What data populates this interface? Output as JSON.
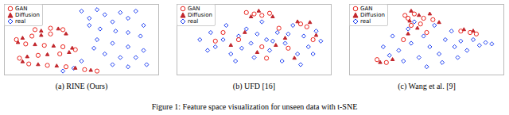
{
  "caption": "Figure 1: Feature space visualization for unseen data with t-SNE",
  "chart_data": [
    {
      "type": "scatter",
      "title": "(a) RINE (Ours)",
      "xlim": [
        0,
        100
      ],
      "ylim": [
        0,
        100
      ],
      "tick_labels": false,
      "legend": "upper left",
      "series": [
        {
          "name": "GAN",
          "color": "#e8251f",
          "marker": "open_circle",
          "values": [
            [
              20,
              64
            ],
            [
              30,
              66
            ],
            [
              38,
              64
            ],
            [
              30,
              58
            ],
            [
              18,
              55
            ],
            [
              8,
              50
            ],
            [
              14,
              44
            ],
            [
              26,
              42
            ],
            [
              38,
              40
            ],
            [
              46,
              36
            ],
            [
              36,
              30
            ],
            [
              22,
              28
            ],
            [
              10,
              24
            ],
            [
              16,
              16
            ],
            [
              28,
              14
            ],
            [
              40,
              12
            ],
            [
              52,
              8
            ],
            [
              60,
              6
            ]
          ]
        },
        {
          "name": "Diffusion",
          "color": "#c1272d",
          "marker": "triangle",
          "values": [
            [
              24,
              62
            ],
            [
              35,
              65
            ],
            [
              40,
              58
            ],
            [
              24,
              56
            ],
            [
              12,
              52
            ],
            [
              9,
              46
            ],
            [
              20,
              43
            ],
            [
              32,
              41
            ],
            [
              44,
              38
            ],
            [
              42,
              32
            ],
            [
              28,
              29
            ],
            [
              15,
              26
            ],
            [
              12,
              19
            ],
            [
              22,
              15
            ],
            [
              34,
              13
            ],
            [
              46,
              10
            ],
            [
              56,
              7
            ]
          ]
        },
        {
          "name": "real",
          "color": "#1a3cf0",
          "marker": "diamond",
          "values": [
            [
              50,
              90
            ],
            [
              55,
              80
            ],
            [
              60,
              92
            ],
            [
              65,
              85
            ],
            [
              70,
              75
            ],
            [
              75,
              88
            ],
            [
              80,
              80
            ],
            [
              85,
              90
            ],
            [
              90,
              70
            ],
            [
              88,
              55
            ],
            [
              80,
              60
            ],
            [
              72,
              62
            ],
            [
              62,
              65
            ],
            [
              55,
              70
            ],
            [
              60,
              50
            ],
            [
              70,
              45
            ],
            [
              80,
              40
            ],
            [
              90,
              35
            ],
            [
              85,
              25
            ],
            [
              75,
              25
            ],
            [
              65,
              30
            ],
            [
              58,
              38
            ],
            [
              70,
              15
            ],
            [
              80,
              12
            ],
            [
              92,
              15
            ],
            [
              50,
              20
            ],
            [
              45,
              10
            ],
            [
              38,
              6
            ]
          ]
        }
      ]
    },
    {
      "type": "scatter",
      "title": "(b) UFD [16]",
      "xlim": [
        0,
        100
      ],
      "ylim": [
        0,
        100
      ],
      "tick_labels": false,
      "legend": "upper left",
      "series": [
        {
          "name": "GAN",
          "color": "#e8251f",
          "marker": "open_circle",
          "values": [
            [
              45,
              88
            ],
            [
              50,
              86
            ],
            [
              55,
              84
            ],
            [
              60,
              87
            ],
            [
              80,
              72
            ],
            [
              84,
              68
            ],
            [
              40,
              50
            ],
            [
              55,
              40
            ],
            [
              66,
              66
            ],
            [
              30,
              60
            ],
            [
              72,
              38
            ],
            [
              58,
              24
            ],
            [
              88,
              50
            ],
            [
              25,
              48
            ]
          ]
        },
        {
          "name": "Diffusion",
          "color": "#c1272d",
          "marker": "triangle",
          "values": [
            [
              48,
              82
            ],
            [
              53,
              90
            ],
            [
              62,
              82
            ],
            [
              78,
              75
            ],
            [
              86,
              74
            ],
            [
              44,
              60
            ],
            [
              64,
              42
            ],
            [
              70,
              52
            ],
            [
              35,
              42
            ],
            [
              52,
              32
            ],
            [
              90,
              56
            ],
            [
              76,
              24
            ]
          ]
        },
        {
          "name": "real",
          "color": "#1a3cf0",
          "marker": "diamond",
          "values": [
            [
              15,
              50
            ],
            [
              22,
              60
            ],
            [
              25,
              40
            ],
            [
              32,
              70
            ],
            [
              35,
              30
            ],
            [
              40,
              55
            ],
            [
              45,
              65
            ],
            [
              48,
              45
            ],
            [
              50,
              25
            ],
            [
              55,
              75
            ],
            [
              58,
              50
            ],
            [
              60,
              35
            ],
            [
              65,
              60
            ],
            [
              68,
              20
            ],
            [
              70,
              45
            ],
            [
              75,
              70
            ],
            [
              78,
              30
            ],
            [
              82,
              55
            ],
            [
              85,
              40
            ],
            [
              90,
              62
            ],
            [
              93,
              48
            ],
            [
              30,
              50
            ],
            [
              42,
              38
            ],
            [
              52,
              58
            ],
            [
              62,
              48
            ],
            [
              72,
              58
            ],
            [
              88,
              30
            ],
            [
              20,
              35
            ],
            [
              38,
              20
            ],
            [
              80,
              15
            ]
          ]
        }
      ]
    },
    {
      "type": "scatter",
      "title": "(c) Wang et al. [9]",
      "xlim": [
        0,
        100
      ],
      "ylim": [
        0,
        100
      ],
      "tick_labels": false,
      "legend": "upper left",
      "series": [
        {
          "name": "GAN",
          "color": "#e8251f",
          "marker": "open_circle",
          "values": [
            [
              36,
              84
            ],
            [
              38,
              80
            ],
            [
              42,
              86
            ],
            [
              48,
              80
            ],
            [
              54,
              78
            ],
            [
              40,
              70
            ],
            [
              46,
              72
            ],
            [
              72,
              62
            ],
            [
              78,
              60
            ],
            [
              82,
              58
            ],
            [
              18,
              22
            ],
            [
              24,
              18
            ],
            [
              50,
              60
            ],
            [
              35,
              50
            ]
          ]
        },
        {
          "name": "Diffusion",
          "color": "#c1272d",
          "marker": "triangle",
          "values": [
            [
              40,
              90
            ],
            [
              39,
              76
            ],
            [
              45,
              84
            ],
            [
              52,
              86
            ],
            [
              58,
              74
            ],
            [
              44,
              66
            ],
            [
              74,
              64
            ],
            [
              80,
              62
            ],
            [
              20,
              18
            ],
            [
              28,
              22
            ],
            [
              38,
              58
            ]
          ]
        },
        {
          "name": "real",
          "color": "#1a3cf0",
          "marker": "diamond",
          "values": [
            [
              22,
              40
            ],
            [
              28,
              55
            ],
            [
              32,
              35
            ],
            [
              38,
              65
            ],
            [
              40,
              45
            ],
            [
              45,
              25
            ],
            [
              48,
              55
            ],
            [
              52,
              40
            ],
            [
              55,
              70
            ],
            [
              58,
              30
            ],
            [
              62,
              50
            ],
            [
              66,
              62
            ],
            [
              68,
              40
            ],
            [
              72,
              48
            ],
            [
              76,
              35
            ],
            [
              80,
              50
            ],
            [
              84,
              42
            ],
            [
              88,
              46
            ],
            [
              92,
              44
            ],
            [
              35,
              20
            ],
            [
              60,
              18
            ],
            [
              70,
              25
            ],
            [
              42,
              75
            ],
            [
              50,
              12
            ],
            [
              26,
              28
            ]
          ]
        }
      ]
    }
  ]
}
